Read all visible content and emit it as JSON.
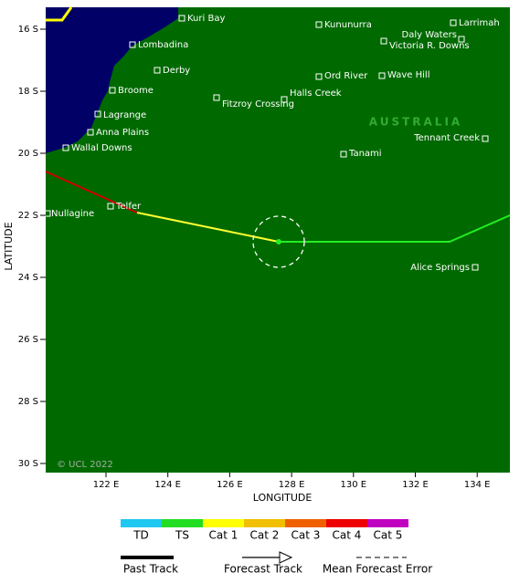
{
  "map": {
    "places": [
      "Kuri Bay",
      "Kununurra",
      "Larrimah",
      "Daly Waters",
      "Lombadina",
      "Victoria R. Downs",
      "Derby",
      "Ord River",
      "Wave Hill",
      "Broome",
      "Halls Creek",
      "Fitzroy Crossing",
      "Lagrange",
      "Anna Plains",
      "Tennant Creek",
      "Wallal Downs",
      "Tanami",
      "Telfer",
      "Nullagine",
      "Alice Springs"
    ],
    "region_label": "AUSTRALIA",
    "copyright": "© UCL 2022",
    "x_ticks": [
      "122 E",
      "124 E",
      "126 E",
      "128 E",
      "130 E",
      "132 E",
      "134 E"
    ],
    "y_ticks": [
      "16 S",
      "18 S",
      "20 S",
      "22 S",
      "24 S",
      "26 S",
      "28 S",
      "30 S"
    ],
    "x_label": "LONGITUDE",
    "y_label": "LATITUDE"
  },
  "legend": {
    "intensity": [
      "TD",
      "TS",
      "Cat 1",
      "Cat 2",
      "Cat 3",
      "Cat 4",
      "Cat 5"
    ],
    "tracks": [
      "Past Track",
      "Forecast Track",
      "Mean Forecast Error"
    ]
  }
}
